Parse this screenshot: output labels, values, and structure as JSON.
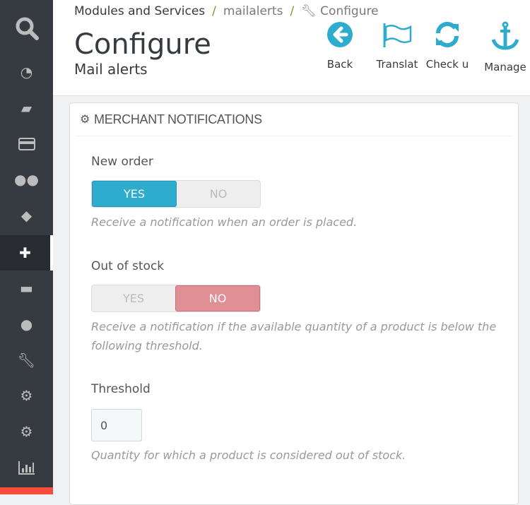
{
  "sidebar": {
    "items": [
      "search",
      "dashboard",
      "orders",
      "payment",
      "customers",
      "catalog",
      "modules",
      "shipping",
      "international",
      "tools",
      "advanced-parameters",
      "preferences",
      "stats"
    ],
    "active": "modules"
  },
  "breadcrumb": {
    "items": [
      "Modules and Services",
      "mailalerts",
      "Configure"
    ]
  },
  "header": {
    "title": "Configure",
    "subtitle": "Mail alerts"
  },
  "toolbar": {
    "back": "Back",
    "translate": "Translat",
    "check": "Check u",
    "manage": "Manage"
  },
  "panel": {
    "title": "MERCHANT NOTIFICATIONS",
    "new_order": {
      "label": "New order",
      "yes": "YES",
      "no": "NO",
      "value": "yes",
      "help": "Receive a notification when an order is placed."
    },
    "out_of_stock": {
      "label": "Out of stock",
      "yes": "YES",
      "no": "NO",
      "value": "no",
      "help": "Receive a notification if the available quantity of a product is below the following threshold."
    },
    "threshold": {
      "label": "Threshold",
      "value": "0",
      "help": "Quantity for which a product is considered out of stock."
    }
  },
  "colors": {
    "accent": "#2eacce",
    "no_active": "#e08f95",
    "sidebar": "#363a41"
  }
}
